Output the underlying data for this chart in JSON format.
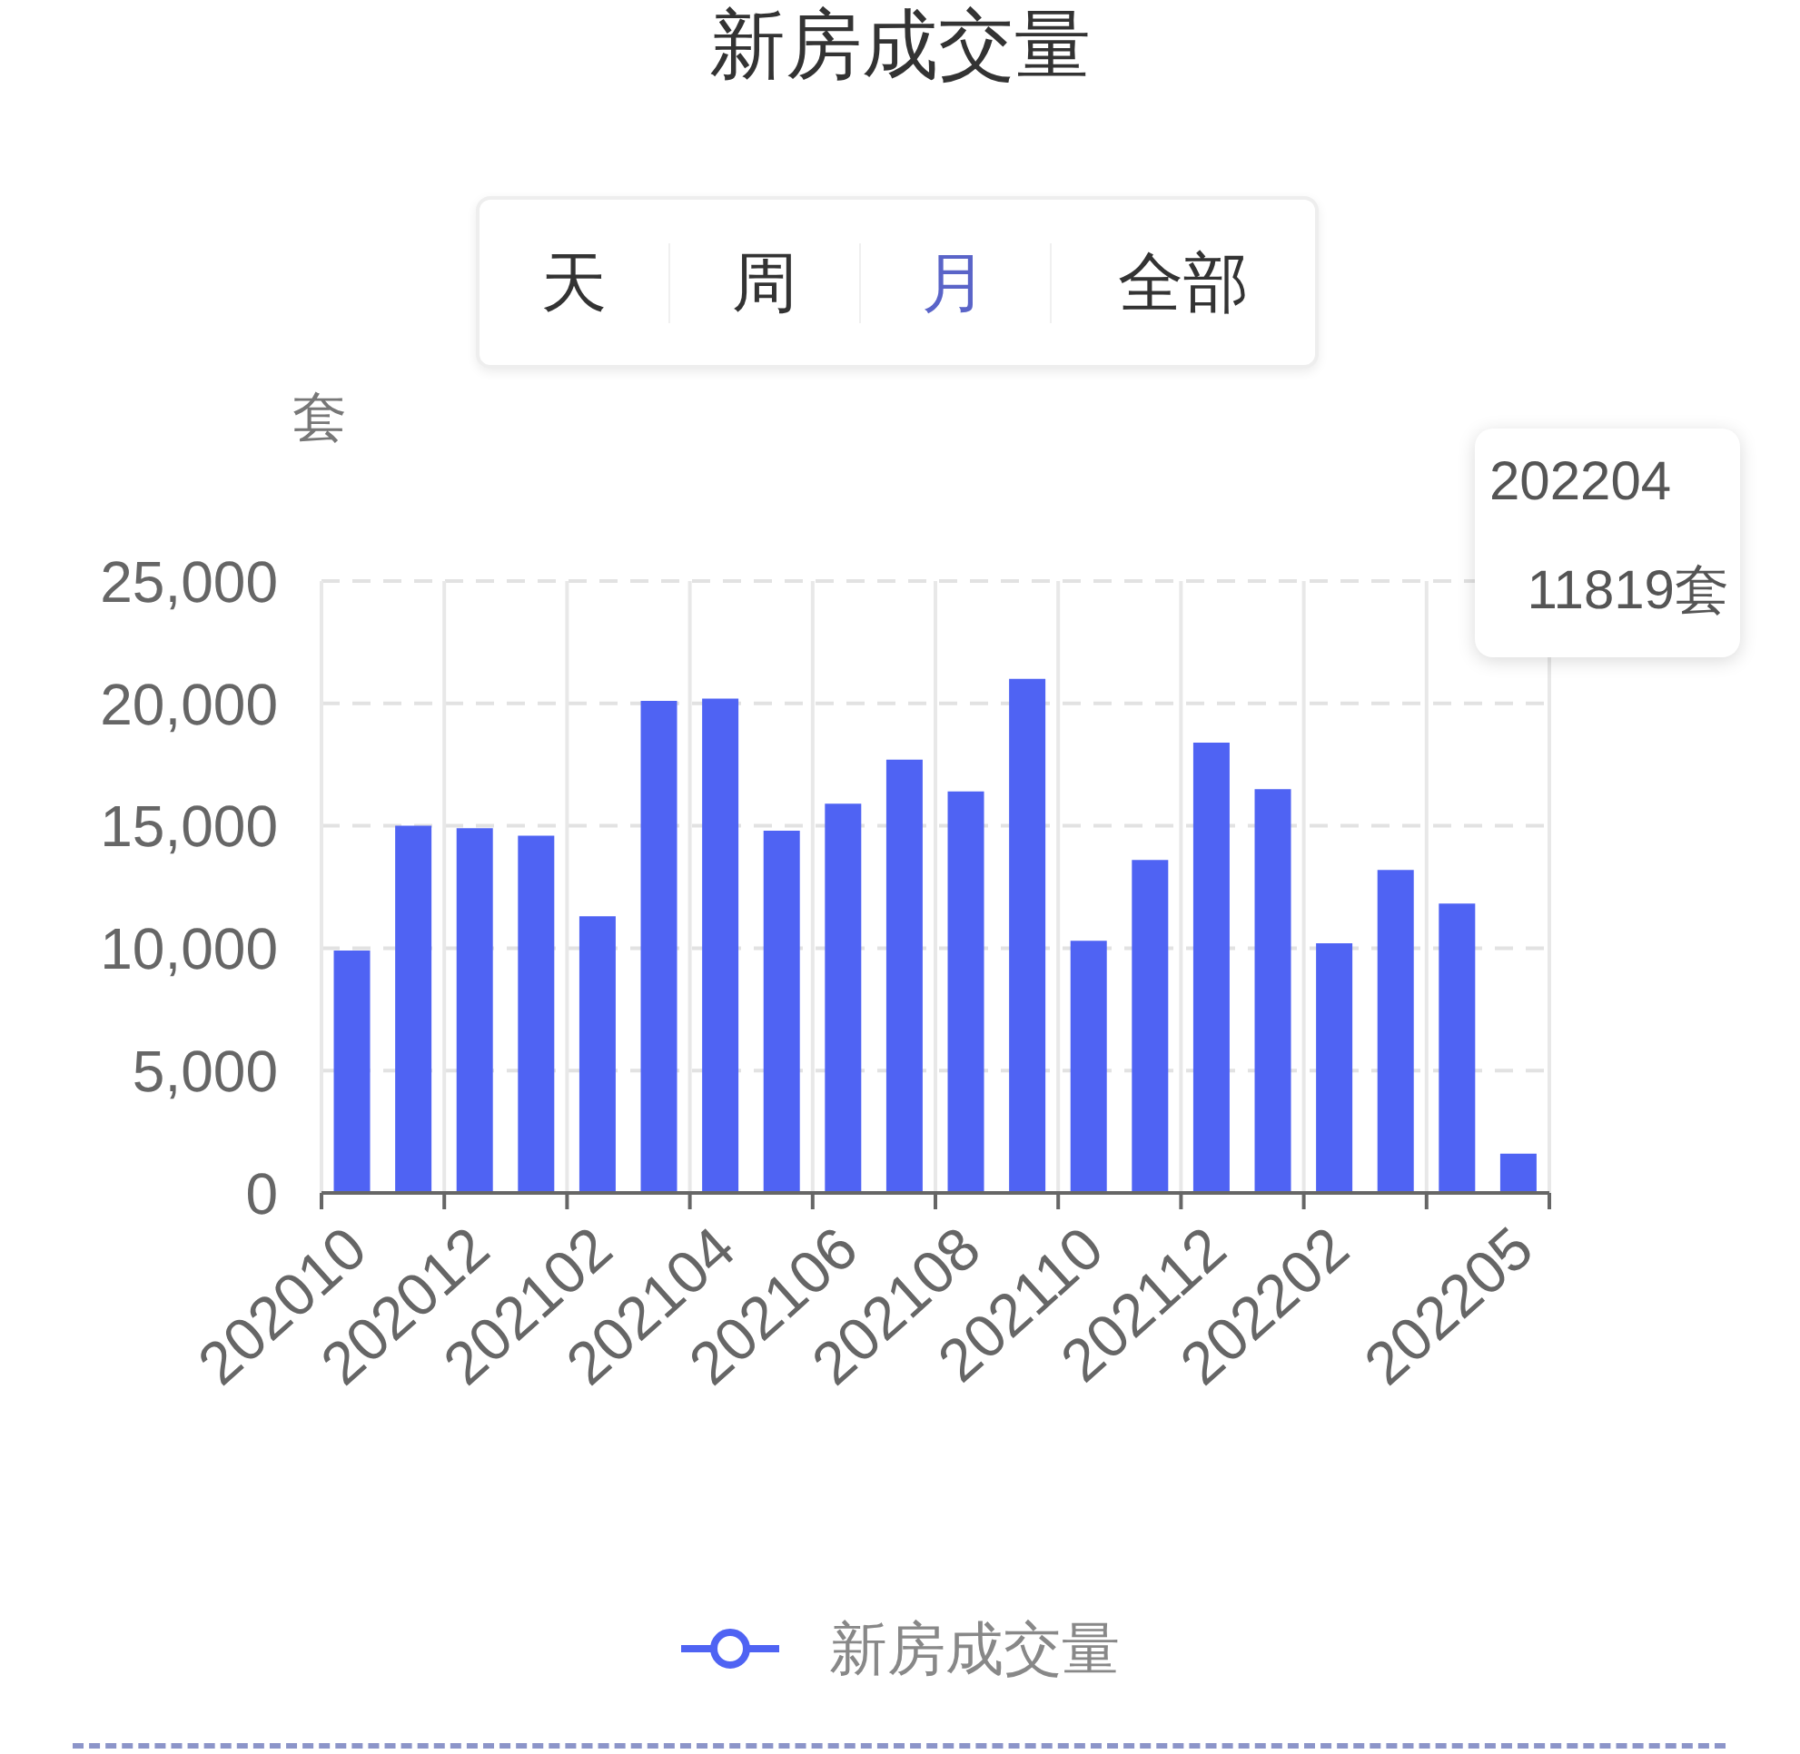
{
  "chart_data": {
    "type": "bar",
    "title": "新房成交量",
    "ylabel": "套",
    "annotations": [
      "天",
      "周",
      "月",
      "全部",
      "202204",
      "11819套"
    ],
    "categories": [
      "202010",
      null,
      "202012",
      null,
      "202102",
      null,
      "202104",
      null,
      "202106",
      null,
      "202108",
      null,
      "202110",
      null,
      "202112",
      null,
      "202202",
      null,
      null,
      "202205"
    ],
    "series": [
      {
        "name": "新房成交量",
        "color": "#4f63f3",
        "values": [
          9900,
          15000,
          14900,
          14600,
          11300,
          20100,
          20200,
          14800,
          15900,
          17700,
          16400,
          21000,
          10300,
          13600,
          18400,
          16500,
          10200,
          13200,
          11819,
          1600
        ]
      }
    ],
    "ylim": [
      0,
      25000
    ],
    "yticks": [
      0,
      {
        "value": 5000,
        "label": "5,000"
      },
      {
        "value": 10000,
        "label": "10,000"
      },
      {
        "value": 15000,
        "label": "15,000"
      },
      {
        "value": 20000,
        "label": "20,000"
      },
      {
        "value": 25000,
        "label": "25,000"
      }
    ],
    "grid": true,
    "legend": "bottom"
  }
}
